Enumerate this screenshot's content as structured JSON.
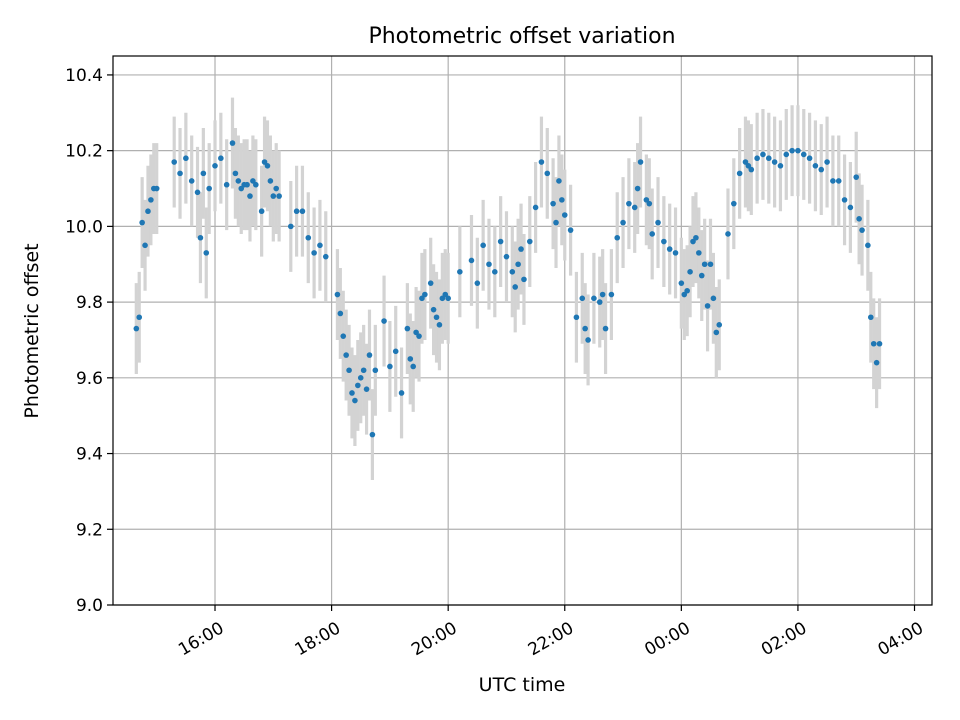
{
  "chart_data": {
    "type": "scatter",
    "title": "Photometric offset variation",
    "xlabel": "UTC time",
    "ylabel": "Photometric offset",
    "ylim": [
      9.0,
      10.45
    ],
    "xlim_hours": [
      14.25,
      28.3
    ],
    "grid": true,
    "y_ticks": [
      9.0,
      9.2,
      9.4,
      9.6,
      9.8,
      10.0,
      10.2,
      10.4
    ],
    "y_tick_labels": [
      "9.0",
      "9.2",
      "9.4",
      "9.6",
      "9.8",
      "10.0",
      "10.2",
      "10.4"
    ],
    "x_ticks_hours": [
      16,
      18,
      20,
      22,
      24,
      26,
      28
    ],
    "x_tick_labels": [
      "16:00",
      "18:00",
      "20:00",
      "22:00",
      "00:00",
      "02:00",
      "04:00"
    ],
    "point_color": "#1f77b4",
    "errorbar_color": "#d3d3d3",
    "errorbar_halfwidth": 0.12,
    "series": [
      {
        "name": "Photometric offset",
        "t": [
          14.65,
          14.7,
          14.75,
          14.8,
          14.85,
          14.9,
          14.95,
          15.0,
          15.3,
          15.4,
          15.5,
          15.6,
          15.7,
          15.75,
          15.8,
          15.85,
          15.9,
          16.0,
          16.1,
          16.2,
          16.3,
          16.35,
          16.4,
          16.45,
          16.5,
          16.55,
          16.6,
          16.65,
          16.7,
          16.8,
          16.85,
          16.9,
          16.95,
          17.0,
          17.05,
          17.1,
          17.3,
          17.4,
          17.5,
          17.6,
          17.7,
          17.8,
          17.9,
          18.1,
          18.15,
          18.2,
          18.25,
          18.3,
          18.35,
          18.4,
          18.45,
          18.5,
          18.55,
          18.6,
          18.65,
          18.7,
          18.75,
          18.9,
          19.0,
          19.1,
          19.2,
          19.3,
          19.35,
          19.4,
          19.45,
          19.5,
          19.55,
          19.6,
          19.7,
          19.75,
          19.8,
          19.85,
          19.9,
          19.95,
          20.0,
          20.2,
          20.4,
          20.5,
          20.6,
          20.7,
          20.8,
          20.9,
          21.0,
          21.1,
          21.15,
          21.2,
          21.25,
          21.3,
          21.4,
          21.5,
          21.6,
          21.7,
          21.8,
          21.85,
          21.9,
          21.95,
          22.0,
          22.1,
          22.2,
          22.3,
          22.35,
          22.4,
          22.5,
          22.6,
          22.65,
          22.7,
          22.8,
          22.9,
          23.0,
          23.1,
          23.2,
          23.25,
          23.3,
          23.4,
          23.45,
          23.5,
          23.6,
          23.7,
          23.8,
          23.9,
          24.0,
          24.05,
          24.1,
          24.15,
          24.2,
          24.25,
          24.3,
          24.35,
          24.4,
          24.45,
          24.5,
          24.55,
          24.6,
          24.65,
          24.8,
          24.9,
          25.0,
          25.1,
          25.15,
          25.2,
          25.3,
          25.4,
          25.5,
          25.6,
          25.7,
          25.8,
          25.9,
          26.0,
          26.1,
          26.2,
          26.3,
          26.4,
          26.5,
          26.6,
          26.7,
          26.8,
          26.9,
          27.0,
          27.05,
          27.1,
          27.2,
          27.25,
          27.3,
          27.35,
          27.4
        ],
        "offset": [
          9.73,
          9.76,
          10.01,
          9.95,
          10.04,
          10.07,
          10.1,
          10.1,
          10.17,
          10.14,
          10.18,
          10.12,
          10.09,
          9.97,
          10.14,
          9.93,
          10.1,
          10.16,
          10.18,
          10.11,
          10.22,
          10.14,
          10.12,
          10.1,
          10.11,
          10.11,
          10.08,
          10.12,
          10.11,
          10.04,
          10.17,
          10.16,
          10.12,
          10.08,
          10.1,
          10.08,
          10.0,
          10.04,
          10.04,
          9.97,
          9.93,
          9.95,
          9.92,
          9.82,
          9.77,
          9.71,
          9.66,
          9.62,
          9.56,
          9.54,
          9.58,
          9.6,
          9.62,
          9.57,
          9.66,
          9.45,
          9.62,
          9.75,
          9.63,
          9.67,
          9.56,
          9.73,
          9.65,
          9.63,
          9.72,
          9.71,
          9.81,
          9.82,
          9.85,
          9.78,
          9.76,
          9.74,
          9.81,
          9.82,
          9.81,
          9.88,
          9.91,
          9.85,
          9.95,
          9.9,
          9.88,
          9.96,
          9.92,
          9.88,
          9.84,
          9.9,
          9.94,
          9.86,
          9.96,
          10.05,
          10.17,
          10.14,
          10.06,
          10.01,
          10.12,
          10.07,
          10.03,
          9.99,
          9.76,
          9.81,
          9.73,
          9.7,
          9.81,
          9.8,
          9.82,
          9.73,
          9.82,
          9.97,
          10.01,
          10.06,
          10.05,
          10.1,
          10.17,
          10.07,
          10.06,
          9.98,
          10.01,
          9.96,
          9.94,
          9.93,
          9.85,
          9.82,
          9.83,
          9.88,
          9.96,
          9.97,
          9.93,
          9.87,
          9.9,
          9.79,
          9.9,
          9.81,
          9.72,
          9.74,
          9.98,
          10.06,
          10.14,
          10.17,
          10.16,
          10.15,
          10.18,
          10.19,
          10.18,
          10.17,
          10.16,
          10.19,
          10.2,
          10.2,
          10.19,
          10.18,
          10.16,
          10.15,
          10.17,
          10.12,
          10.12,
          10.07,
          10.05,
          10.13,
          10.02,
          9.99,
          9.95,
          9.76,
          9.69,
          9.64,
          9.69
        ]
      }
    ]
  }
}
